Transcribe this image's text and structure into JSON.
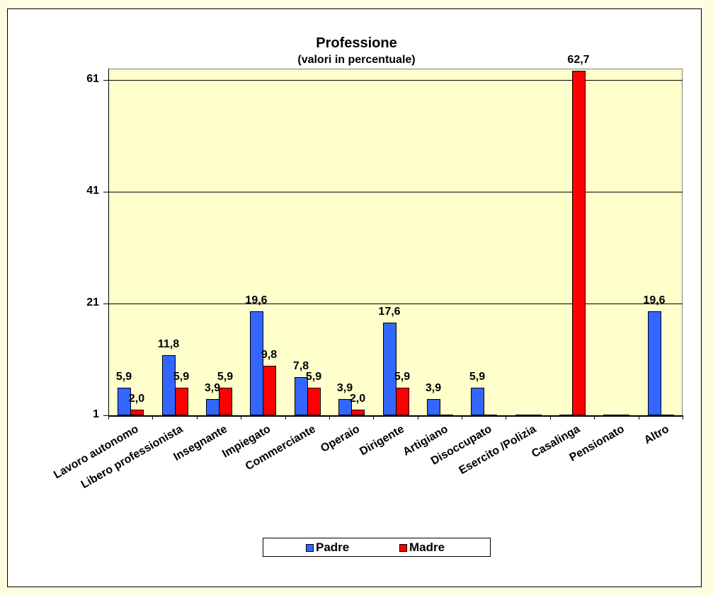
{
  "chart_data": {
    "type": "bar",
    "title": "Professione",
    "subtitle": "(valori in percentuale)",
    "xlabel": "",
    "ylabel": "",
    "ylim": [
      1,
      63
    ],
    "yticks": [
      1,
      21,
      41,
      61
    ],
    "grid": true,
    "legend_position": "bottom",
    "categories": [
      "Lavoro autonomo",
      "Libero professionista",
      "Insegnante",
      "Impiegato",
      "Commerciante",
      "Operaio",
      "Dirigente",
      "Artigiano",
      "Disoccupato",
      "Esercito /Polizia",
      "Casalinga",
      "Pensionato",
      "Altro"
    ],
    "series": [
      {
        "name": "Padre",
        "color": "#3366FF",
        "values": [
          5.9,
          11.8,
          3.9,
          19.6,
          7.8,
          3.9,
          17.6,
          3.9,
          5.9,
          0,
          0,
          0,
          19.6
        ]
      },
      {
        "name": "Madre",
        "color": "#FF0000",
        "values": [
          2.0,
          5.9,
          5.9,
          9.8,
          5.9,
          2.0,
          5.9,
          0,
          0,
          0,
          62.7,
          0,
          0
        ]
      }
    ],
    "data_labels": {
      "Padre": [
        "5,9",
        "11,8",
        "3,9",
        "19,6",
        "7,8",
        "3,9",
        "17,6",
        "3,9",
        "5,9",
        "",
        "",
        "",
        "19,6"
      ],
      "Madre": [
        "2,0",
        "5,9",
        "5,9",
        "9,8",
        "5,9",
        "2,0",
        "5,9",
        "",
        "",
        "",
        "62,7",
        "",
        ""
      ]
    }
  },
  "title": {
    "main": "Professione",
    "sub": "(valori in percentuale)"
  },
  "yaxis": {
    "ticks": [
      "61",
      "41",
      "21",
      "1"
    ]
  },
  "legend": {
    "padre": "Padre",
    "madre": "Madre"
  },
  "colors": {
    "padre": "#3366FF",
    "madre": "#FF0000",
    "plot_bg": "#FFFFCC",
    "page_bg": "#FFFDE0"
  }
}
